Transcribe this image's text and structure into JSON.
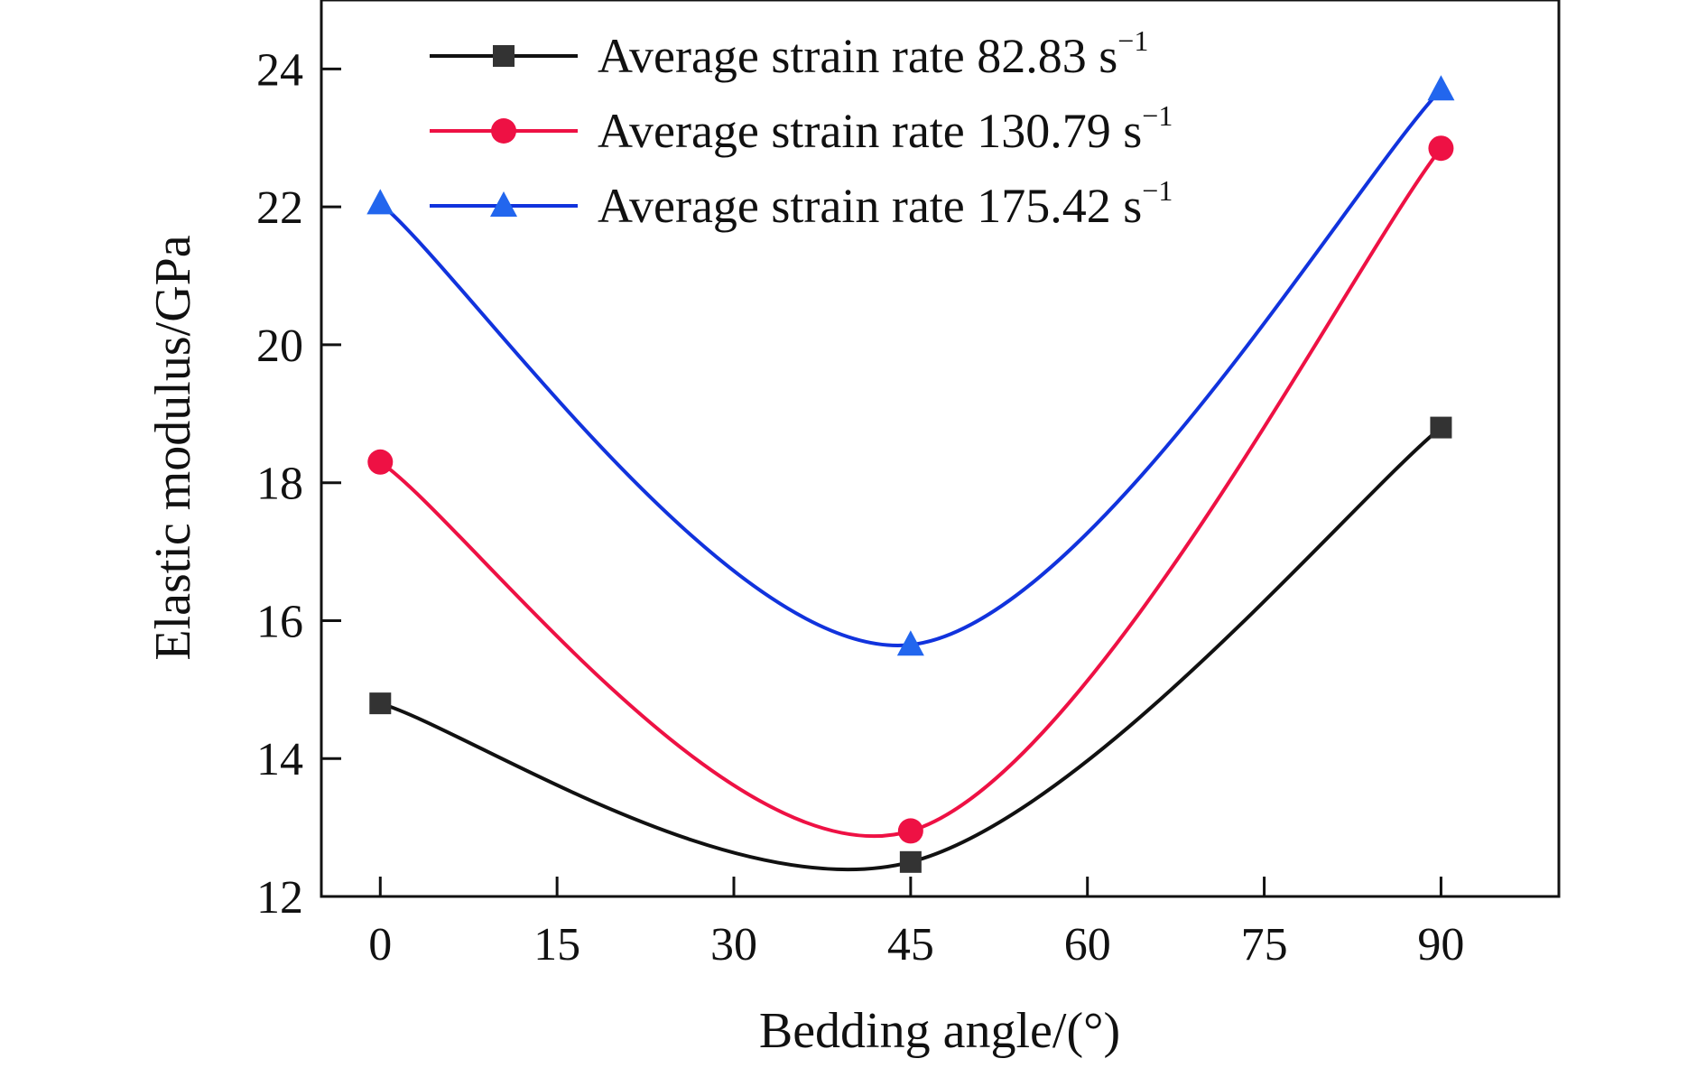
{
  "chart_data": {
    "type": "line",
    "xlabel": "Bedding angle/(°)",
    "ylabel": "Elastic modulus/GPa",
    "xlim": [
      -5,
      100
    ],
    "ylim": [
      12,
      25
    ],
    "x_ticks": [
      "0",
      "15",
      "30",
      "45",
      "60",
      "75",
      "90"
    ],
    "y_ticks": [
      "12",
      "14",
      "16",
      "18",
      "20",
      "22",
      "24"
    ],
    "x": [
      0,
      45,
      90
    ],
    "grid": false,
    "legend_position": "top-center",
    "series": [
      {
        "name": "Average strain rate 82.83 s",
        "name_sup": "−1",
        "color": "#111111",
        "marker": "square",
        "values": [
          14.8,
          12.5,
          18.8
        ]
      },
      {
        "name": "Average strain rate 130.79 s",
        "name_sup": "−1",
        "color": "#ee1144",
        "marker": "circle",
        "values": [
          18.3,
          12.95,
          22.85
        ]
      },
      {
        "name": "Average strain rate 175.42 s",
        "name_sup": "−1",
        "color": "#1133dd",
        "marker": "triangle",
        "values": [
          22.05,
          15.65,
          23.7
        ]
      }
    ]
  }
}
